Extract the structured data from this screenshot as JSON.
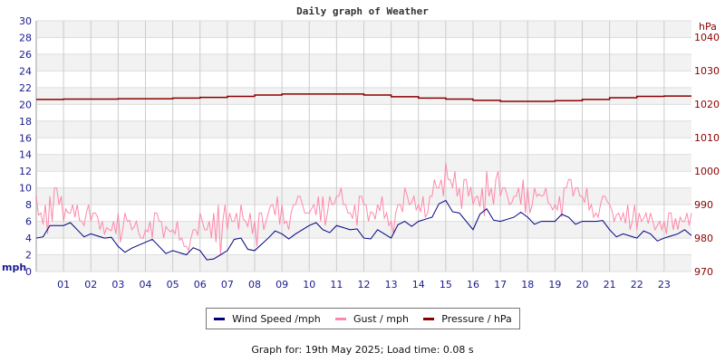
{
  "chart_data": {
    "type": "line",
    "title": "Daily graph of Weather",
    "ylabel_left": "mph",
    "ylabel_right": "hPa",
    "ylim_left": [
      0,
      30
    ],
    "ylim_right": [
      970,
      1045
    ],
    "yticks_left": [
      0,
      2,
      4,
      6,
      8,
      10,
      12,
      14,
      16,
      18,
      20,
      22,
      24,
      26,
      28,
      30
    ],
    "yticks_right": [
      970,
      980,
      990,
      1000,
      1010,
      1020,
      1030,
      1040
    ],
    "xticks": [
      "01",
      "02",
      "03",
      "04",
      "05",
      "06",
      "07",
      "08",
      "09",
      "10",
      "11",
      "12",
      "13",
      "14",
      "15",
      "16",
      "17",
      "18",
      "19",
      "20",
      "21",
      "22",
      "23"
    ],
    "xlim_hours": [
      0,
      24
    ],
    "grid": true,
    "legend_position": "bottom",
    "colors": {
      "wind": "#000080",
      "gust": "#ff88aa",
      "pressure": "#8b0000"
    },
    "series": [
      {
        "name": "Wind Speed /mph",
        "axis": "left",
        "x_step_hours": 0.5,
        "values": [
          4,
          5.5,
          5.5,
          5,
          4.5,
          4,
          3,
          2.8,
          3.5,
          3,
          2.5,
          2,
          2.5,
          1.5,
          2.5,
          4,
          2.5,
          4,
          4.5,
          4.5,
          5.5,
          5,
          5.5,
          5,
          4,
          5,
          4,
          6,
          6,
          6.5,
          8.5,
          7,
          5,
          7.5,
          6,
          6.5,
          6.5,
          6,
          6,
          6.5,
          6,
          6,
          5,
          4.5,
          4,
          4.5,
          4,
          4.5,
          4.3
        ]
      },
      {
        "name": "Gust / mph",
        "axis": "left",
        "x_step_hours": 0.5,
        "values": [
          9,
          10,
          8,
          8,
          7,
          6,
          7,
          6,
          7,
          6,
          6,
          5,
          7,
          8,
          7,
          8,
          7,
          9,
          8,
          9,
          9,
          9,
          10,
          9,
          8,
          9,
          8,
          10,
          9,
          11,
          13,
          11,
          10,
          12,
          10,
          11,
          10,
          10,
          10,
          11,
          10,
          9,
          8,
          8,
          7,
          7,
          7,
          7,
          7
        ]
      },
      {
        "name": "Pressure / hPa",
        "axis": "right",
        "x_step_hours": 1,
        "values": [
          1021.4,
          1021.5,
          1021.5,
          1021.6,
          1021.6,
          1021.8,
          1022,
          1022.3,
          1022.7,
          1023,
          1023,
          1023,
          1022.7,
          1022.2,
          1021.8,
          1021.5,
          1021.1,
          1020.8,
          1020.8,
          1021,
          1021.4,
          1021.9,
          1022.3,
          1022.4,
          1022.4
        ]
      }
    ]
  },
  "footer": "Graph for: 19th May 2025; Load time: 0.08 s"
}
